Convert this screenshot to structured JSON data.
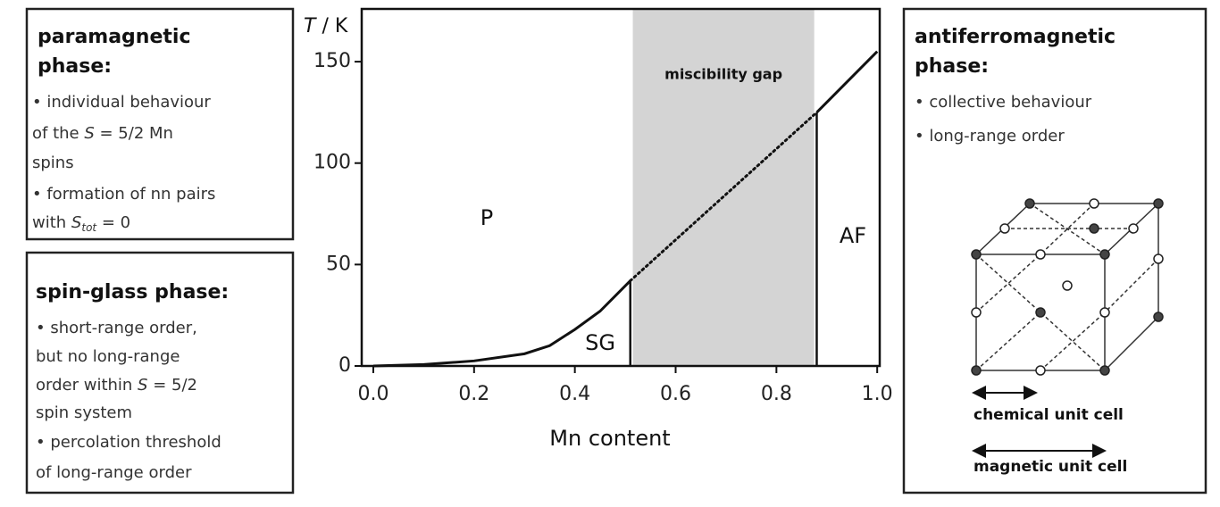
{
  "chart_data": {
    "type": "line",
    "x_label": "Mn content",
    "y_label": [
      "T",
      " / K"
    ],
    "xlim": [
      -0.023,
      1.005
    ],
    "ylim": [
      0,
      176
    ],
    "xticks": [
      {
        "value": 0,
        "label": "0.0"
      },
      0.2,
      0.4,
      0.6,
      0.8,
      {
        "value": 1,
        "label": "1.0"
      }
    ],
    "yticks": [
      0,
      50,
      100,
      150
    ],
    "color": "#111",
    "lines": [
      {
        "x": [
          0,
          0.1,
          0.2,
          0.3,
          0.35,
          0.4,
          0.45,
          0.51
        ],
        "values": [
          0,
          0.7,
          2.5,
          6,
          10,
          18,
          27,
          42
        ],
        "style": "solid"
      },
      {
        "x": [
          0.51,
          0.88
        ],
        "values": [
          42,
          125
        ],
        "style": "dotted"
      },
      {
        "x": [
          0.88,
          1
        ],
        "values": [
          125,
          155
        ],
        "style": "solid"
      }
    ],
    "boundaries": [
      {
        "x": 0.51,
        "values": [
          0,
          42
        ]
      },
      {
        "x": 0.88,
        "values": [
          0,
          125
        ]
      }
    ],
    "gap": {
      "label": "miscibility gap",
      "range": [
        0.515,
        0.875
      ],
      "color": "#d4d4d4"
    },
    "regions": [
      "P",
      "SG",
      "AF"
    ]
  },
  "boxes": {
    "paramagnetic": {
      "title": [
        "paramagnetic",
        "phase:"
      ],
      "lines": [
        "• individual behaviour",
        [
          "of the ",
          "S",
          " = 5/2 Mn"
        ],
        "spins",
        "• formation of nn pairs",
        [
          "with ",
          "S",
          "tot",
          " = 0"
        ]
      ]
    },
    "spin_glass": {
      "title": "spin-glass phase:",
      "lines": [
        "• short-range order,",
        "but no long-range",
        [
          "order within ",
          "S",
          " = 5/2"
        ],
        "spin system",
        "• percolation threshold",
        "of long-range order"
      ]
    },
    "antiferromagnetic": {
      "title": [
        "antiferromagnetic",
        "phase:"
      ],
      "lines": [
        "• collective behaviour",
        "• long-range order"
      ],
      "chemical": "chemical unit cell",
      "magnetic": "magnetic unit cell"
    }
  }
}
